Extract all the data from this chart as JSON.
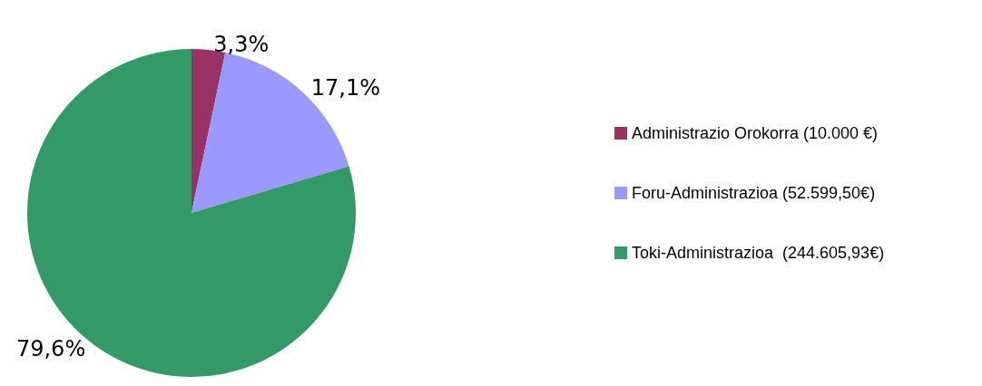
{
  "chart_data": {
    "type": "pie",
    "categories": [
      "Administrazio Orokorra (10.000 €)",
      "Foru-Administrazioa (52.599,50€)",
      "Toki-Administrazioa  (244.605,93€)"
    ],
    "values": [
      3.3,
      17.1,
      79.6
    ],
    "colors": [
      "#993366",
      "#9999ff",
      "#339966"
    ],
    "value_labels": [
      "3,3%",
      "17,1%",
      "79,6%"
    ],
    "legend": "right"
  }
}
